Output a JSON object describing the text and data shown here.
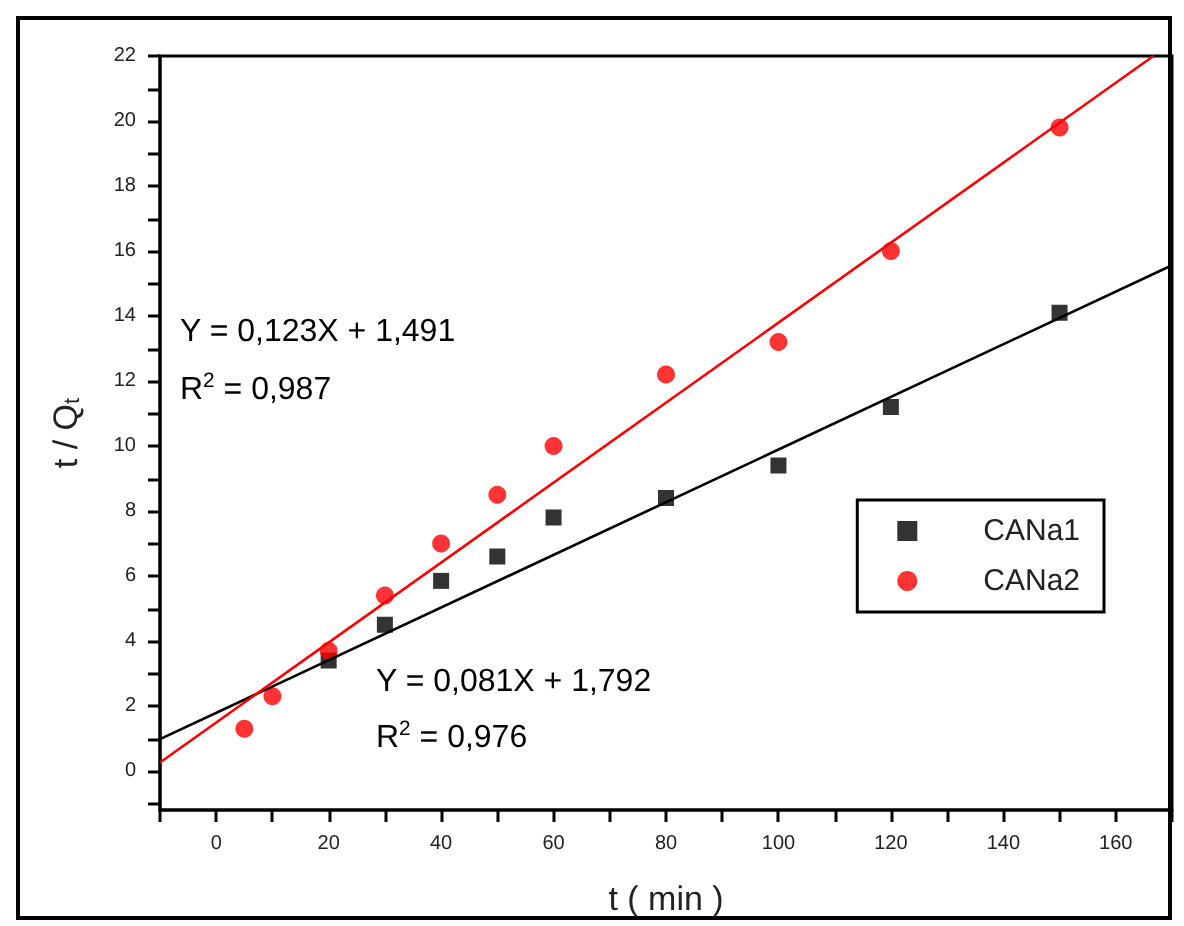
{
  "chart_data": {
    "type": "scatter",
    "xlabel": "t ( min )",
    "ylabel": "t / Q$_{t}$",
    "xlim": [
      -10,
      170
    ],
    "xticks": [
      0,
      20,
      40,
      60,
      80,
      100,
      120,
      140,
      160
    ],
    "ylim": [
      -1.2,
      22
    ],
    "yticks": [
      0,
      2,
      4,
      6,
      8,
      10,
      12,
      14,
      16,
      18,
      20,
      22
    ],
    "grid": false,
    "legend": "right",
    "series": [
      {
        "name": "CANa1",
        "marker": "square",
        "color": "#000000",
        "x": [
          20,
          30,
          40,
          50,
          60,
          80,
          100,
          120,
          150
        ],
        "values": [
          3.4,
          4.5,
          5.85,
          6.6,
          7.8,
          8.4,
          9.4,
          11.2,
          14.1
        ]
      },
      {
        "name": "CANa2",
        "marker": "circle",
        "color": "#ff0000",
        "x": [
          5,
          10,
          20,
          30,
          40,
          50,
          60,
          80,
          100,
          120,
          150
        ],
        "values": [
          1.3,
          2.3,
          3.7,
          5.4,
          7.0,
          8.5,
          10.0,
          12.2,
          13.2,
          16.0,
          19.8
        ]
      },
      {
        "type": "line",
        "marker": "none",
        "color": "#000000",
        "x": [
          -10,
          170
        ],
        "values": [
          0.98,
          15.56
        ]
      },
      {
        "type": "line",
        "marker": "none",
        "color": "#ff0000",
        "x": [
          -10,
          166.7
        ],
        "values": [
          0.26,
          22
        ]
      }
    ],
    "annotations": [
      "Y = 0,123X + 1,491",
      "R$^{2}$ = 0,987",
      "Y = 0,081X + 1,792",
      "R$^{2}$ = 0,976"
    ]
  }
}
